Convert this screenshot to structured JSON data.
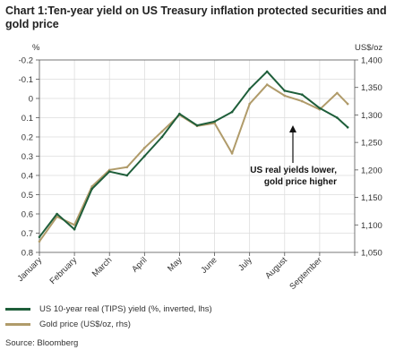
{
  "title": "Chart 1:Ten-year yield on US Treasury inflation protected securities and gold price",
  "chart_data": {
    "type": "line",
    "left_unit": "%",
    "right_unit": "US$/oz",
    "left_axis": {
      "min": -0.2,
      "max": 0.8,
      "inverted": true,
      "ticks": [
        "-0.2",
        "-0.1",
        "0",
        "0.1",
        "0.2",
        "0.3",
        "0.4",
        "0.5",
        "0.6",
        "0.7",
        "0.8"
      ]
    },
    "right_axis": {
      "min": 1050,
      "max": 1400,
      "ticks": [
        "1,400",
        "1,350",
        "1,300",
        "1,250",
        "1,200",
        "1,150",
        "1,100",
        "1,050"
      ]
    },
    "months": [
      "January",
      "February",
      "March",
      "April",
      "May",
      "June",
      "July",
      "August",
      "September"
    ],
    "grid": true,
    "annotation": {
      "line1": "US real yields lower,",
      "line2": "gold price higher"
    },
    "series": [
      {
        "name": "US 10-year real (TIPS) yield (%, inverted, lhs)",
        "axis": "left",
        "color": "#1e5e3a",
        "x": [
          0,
          0.5,
          1,
          1.5,
          2,
          2.5,
          3,
          3.5,
          4,
          4.5,
          5,
          5.5,
          6,
          6.5,
          7,
          7.5,
          8,
          8.5,
          8.8
        ],
        "values": [
          0.72,
          0.6,
          0.68,
          0.47,
          0.38,
          0.4,
          0.3,
          0.2,
          0.08,
          0.14,
          0.12,
          0.07,
          -0.05,
          -0.14,
          -0.04,
          -0.02,
          0.05,
          0.1,
          0.15
        ]
      },
      {
        "name": "Gold price (US$/oz, rhs)",
        "axis": "right",
        "color": "#b09b6a",
        "x": [
          0,
          0.5,
          1,
          1.5,
          2,
          2.5,
          3,
          3.5,
          4,
          4.5,
          5,
          5.5,
          6,
          6.5,
          7,
          7.5,
          8,
          8.5,
          8.8
        ],
        "values": [
          1070,
          1115,
          1100,
          1170,
          1200,
          1205,
          1240,
          1270,
          1300,
          1280,
          1285,
          1230,
          1320,
          1355,
          1335,
          1325,
          1310,
          1340,
          1320
        ]
      }
    ]
  },
  "legend": [
    {
      "label": "US 10-year real (TIPS) yield (%, inverted, lhs)",
      "color": "#1e5e3a"
    },
    {
      "label": "Gold price (US$/oz, rhs)",
      "color": "#b09b6a"
    }
  ],
  "source": "Source: Bloomberg"
}
